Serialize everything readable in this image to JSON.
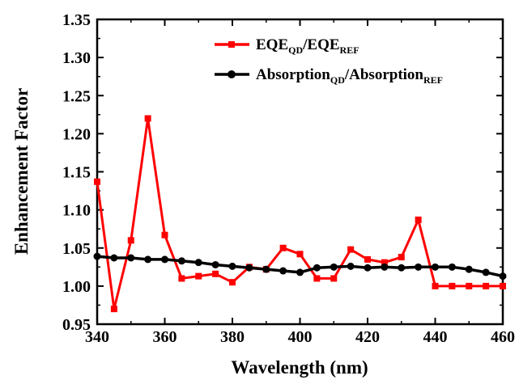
{
  "chart_data": {
    "type": "line",
    "xlabel": "Wavelength (nm)",
    "ylabel": "Enhancement Factor",
    "xlim": [
      340,
      460
    ],
    "ylim": [
      0.95,
      1.35
    ],
    "x_ticks": [
      "340",
      "360",
      "380",
      "400",
      "420",
      "440",
      "460"
    ],
    "y_ticks": [
      "0.95",
      "1.00",
      "1.05",
      "1.10",
      "1.15",
      "1.20",
      "1.25",
      "1.30",
      "1.35"
    ],
    "grid": false,
    "legend_position": "top-right",
    "series": [
      {
        "name": "EQE_QD/EQE_REF",
        "legend_main": [
          "EQE",
          "/EQE"
        ],
        "legend_sub": [
          "QD",
          "REF"
        ],
        "color": "#ff0000",
        "marker": "square",
        "x": [
          340,
          345,
          350,
          355,
          360,
          365,
          370,
          375,
          380,
          385,
          390,
          395,
          400,
          405,
          410,
          415,
          420,
          425,
          430,
          435,
          440,
          445,
          450,
          455,
          460
        ],
        "values": [
          1.137,
          0.97,
          1.06,
          1.22,
          1.067,
          1.01,
          1.013,
          1.016,
          1.005,
          1.025,
          1.022,
          1.05,
          1.042,
          1.01,
          1.01,
          1.048,
          1.035,
          1.031,
          1.038,
          1.087,
          1.0,
          1.0,
          1.0,
          1.0,
          1.0
        ]
      },
      {
        "name": "Absorption_QD/Absorption_REF",
        "legend_main": [
          "Absorption",
          "/Absorption"
        ],
        "legend_sub": [
          "QD",
          "REF"
        ],
        "color": "#000000",
        "marker": "circle",
        "x": [
          340,
          345,
          350,
          355,
          360,
          365,
          370,
          375,
          380,
          385,
          390,
          395,
          400,
          405,
          410,
          415,
          420,
          425,
          430,
          435,
          440,
          445,
          450,
          455,
          460
        ],
        "values": [
          1.039,
          1.037,
          1.037,
          1.035,
          1.035,
          1.033,
          1.031,
          1.028,
          1.026,
          1.024,
          1.022,
          1.02,
          1.018,
          1.024,
          1.025,
          1.026,
          1.024,
          1.025,
          1.024,
          1.025,
          1.025,
          1.025,
          1.022,
          1.018,
          1.013
        ]
      }
    ]
  }
}
